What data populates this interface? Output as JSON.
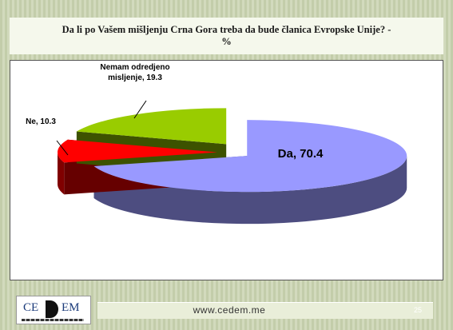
{
  "chart_data": {
    "type": "pie",
    "title": "Da li po Vašem mišljenju Crna Gora treba da bude članica Evropske Unije? - %",
    "values": [
      70.4,
      10.3,
      19.3
    ],
    "value_labels": [
      "Da, 70.4",
      "Ne, 10.3",
      "Nemam odredjeno misljenje, 19.3"
    ],
    "colors": [
      "#9999ff",
      "#ff0000",
      "#99cc00"
    ]
  },
  "footer": {
    "logo_left": "CE",
    "logo_right": "EM",
    "url": "www.cedem.me",
    "page": "25"
  }
}
